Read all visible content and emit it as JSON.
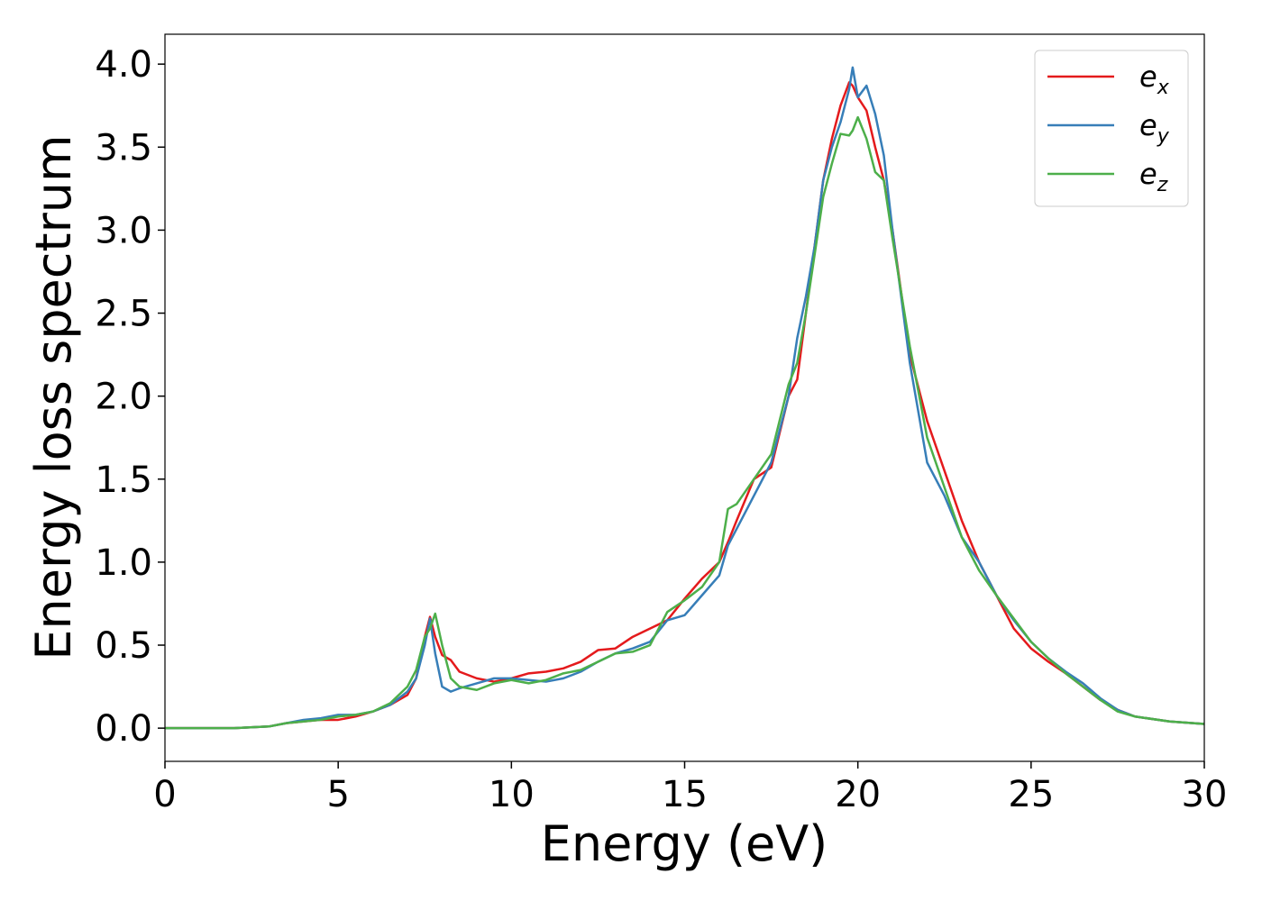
{
  "chart_data": {
    "type": "line",
    "xlabel": "Energy (eV)",
    "ylabel": "Energy loss spectrum",
    "x": [
      0,
      1,
      2,
      3,
      3.5,
      4,
      4.5,
      5,
      5.5,
      6,
      6.5,
      7,
      7.25,
      7.5,
      7.65,
      7.8,
      8,
      8.25,
      8.5,
      9,
      9.5,
      10,
      10.5,
      11,
      11.5,
      12,
      12.5,
      13,
      13.5,
      14,
      14.5,
      15,
      15.5,
      16,
      16.25,
      16.5,
      17,
      17.5,
      18,
      18.25,
      18.5,
      18.75,
      19,
      19.25,
      19.5,
      19.75,
      19.85,
      20,
      20.25,
      20.5,
      20.75,
      21,
      21.5,
      22,
      22.5,
      23,
      23.5,
      24,
      24.5,
      25,
      25.5,
      26,
      26.5,
      27,
      27.5,
      28,
      29,
      30
    ],
    "series": [
      {
        "name": "ex",
        "color": "#e41a1c",
        "values": [
          0,
          0,
          0,
          0.01,
          0.03,
          0.04,
          0.05,
          0.05,
          0.07,
          0.1,
          0.14,
          0.2,
          0.3,
          0.55,
          0.67,
          0.55,
          0.44,
          0.41,
          0.34,
          0.3,
          0.28,
          0.3,
          0.33,
          0.34,
          0.36,
          0.4,
          0.47,
          0.48,
          0.55,
          0.6,
          0.65,
          0.78,
          0.9,
          1.0,
          1.12,
          1.25,
          1.5,
          1.57,
          2.0,
          2.1,
          2.5,
          2.9,
          3.3,
          3.55,
          3.75,
          3.89,
          3.87,
          3.8,
          3.72,
          3.5,
          3.3,
          3.0,
          2.25,
          1.85,
          1.55,
          1.25,
          1.0,
          0.8,
          0.6,
          0.48,
          0.4,
          0.33,
          0.25,
          0.17,
          0.11,
          0.07,
          0.04,
          0.025
        ]
      },
      {
        "name": "ey",
        "color": "#377eb8",
        "values": [
          0,
          0,
          0,
          0.01,
          0.03,
          0.05,
          0.06,
          0.08,
          0.08,
          0.1,
          0.14,
          0.22,
          0.3,
          0.5,
          0.66,
          0.45,
          0.25,
          0.22,
          0.24,
          0.27,
          0.3,
          0.3,
          0.29,
          0.28,
          0.3,
          0.34,
          0.4,
          0.45,
          0.48,
          0.52,
          0.65,
          0.68,
          0.8,
          0.92,
          1.1,
          1.2,
          1.4,
          1.6,
          2.0,
          2.35,
          2.6,
          2.9,
          3.3,
          3.5,
          3.65,
          3.85,
          3.98,
          3.8,
          3.87,
          3.7,
          3.45,
          3.0,
          2.2,
          1.6,
          1.4,
          1.15,
          1.0,
          0.8,
          0.65,
          0.52,
          0.42,
          0.34,
          0.27,
          0.18,
          0.11,
          0.07,
          0.04,
          0.025
        ]
      },
      {
        "name": "ez",
        "color": "#4daf4a",
        "values": [
          0,
          0,
          0,
          0.01,
          0.03,
          0.04,
          0.05,
          0.07,
          0.08,
          0.1,
          0.15,
          0.25,
          0.35,
          0.55,
          0.6,
          0.69,
          0.5,
          0.3,
          0.25,
          0.23,
          0.27,
          0.29,
          0.27,
          0.29,
          0.33,
          0.35,
          0.4,
          0.45,
          0.46,
          0.5,
          0.7,
          0.77,
          0.85,
          1.0,
          1.32,
          1.35,
          1.5,
          1.65,
          2.07,
          2.2,
          2.5,
          2.85,
          3.2,
          3.4,
          3.58,
          3.57,
          3.6,
          3.68,
          3.55,
          3.35,
          3.3,
          2.95,
          2.3,
          1.75,
          1.45,
          1.15,
          0.95,
          0.8,
          0.66,
          0.52,
          0.42,
          0.33,
          0.25,
          0.17,
          0.1,
          0.07,
          0.04,
          0.025
        ]
      }
    ],
    "xlim": [
      0,
      30
    ],
    "xticks": [
      0,
      5,
      10,
      15,
      20,
      25,
      30
    ],
    "ylim": [
      -0.2,
      4.18
    ],
    "yticks": [
      {
        "value": 0,
        "label": "0.0"
      },
      0.5,
      {
        "value": 1,
        "label": "1.0"
      },
      1.5,
      {
        "value": 2,
        "label": "2.0"
      },
      2.5,
      {
        "value": 3,
        "label": "3.0"
      },
      3.5,
      {
        "value": 4,
        "label": "4.0"
      }
    ],
    "legend": "upper right"
  }
}
